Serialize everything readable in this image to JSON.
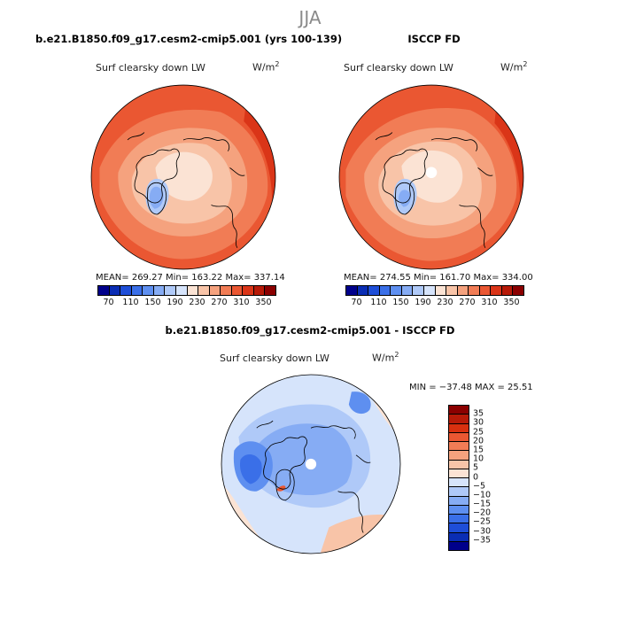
{
  "figure_title": "JJA",
  "panels": [
    {
      "title": "b.e21.B1850.f09_g17.cesm2-cmip5.001 (yrs 100-139)",
      "variable": "Surf clearsky down LW",
      "units": "W/m",
      "units_sup": "2",
      "stats": "MEAN= 269.27   Min= 163.22   Max= 337.14"
    },
    {
      "title": "ISCCP FD",
      "variable": "Surf clearsky down LW",
      "units": "W/m",
      "units_sup": "2",
      "stats": "MEAN= 274.55   Min= 161.70   Max= 334.00"
    },
    {
      "title": "b.e21.B1850.f09_g17.cesm2-cmip5.001 - ISCCP FD",
      "variable": "Surf clearsky down LW",
      "units": "W/m",
      "units_sup": "2",
      "stats": "MIN = −37.48 MAX =  25.51"
    }
  ],
  "chart_data": [
    {
      "type": "heatmap",
      "projection": "polar-stereographic (north)",
      "title": "b.e21.B1850.f09_g17.cesm2-cmip5.001 (yrs 100-139)",
      "variable": "Surf clearsky down LW",
      "units": "W/m2",
      "mean": 269.27,
      "min": 163.22,
      "max": 337.14,
      "colorbar": {
        "levels": [
          70,
          90,
          110,
          130,
          150,
          170,
          190,
          210,
          230,
          250,
          270,
          290,
          310,
          330,
          350
        ],
        "tick_labels": [
          "70",
          "110",
          "150",
          "190",
          "230",
          "270",
          "310",
          "350"
        ],
        "colors": [
          "#00008b",
          "#0a2db4",
          "#1e4ed8",
          "#3a6fe8",
          "#5e8ff0",
          "#86acf4",
          "#afc9f8",
          "#d6e4fb",
          "#fbe3d4",
          "#f8c4a8",
          "#f5a27e",
          "#f17c55",
          "#ea5732",
          "#da3518",
          "#b71a08",
          "#8b0000"
        ]
      }
    },
    {
      "type": "heatmap",
      "projection": "polar-stereographic (north)",
      "title": "ISCCP FD",
      "variable": "Surf clearsky down LW",
      "units": "W/m2",
      "mean": 274.55,
      "min": 161.7,
      "max": 334.0,
      "colorbar": {
        "levels": [
          70,
          90,
          110,
          130,
          150,
          170,
          190,
          210,
          230,
          250,
          270,
          290,
          310,
          330,
          350
        ],
        "tick_labels": [
          "70",
          "110",
          "150",
          "190",
          "230",
          "270",
          "310",
          "350"
        ],
        "colors": [
          "#00008b",
          "#0a2db4",
          "#1e4ed8",
          "#3a6fe8",
          "#5e8ff0",
          "#86acf4",
          "#afc9f8",
          "#d6e4fb",
          "#fbe3d4",
          "#f8c4a8",
          "#f5a27e",
          "#f17c55",
          "#ea5732",
          "#da3518",
          "#b71a08",
          "#8b0000"
        ]
      }
    },
    {
      "type": "heatmap",
      "projection": "polar-stereographic (north)",
      "title": "b.e21.B1850.f09_g17.cesm2-cmip5.001 - ISCCP FD",
      "variable": "Surf clearsky down LW",
      "units": "W/m2",
      "min": -37.48,
      "max": 25.51,
      "colorbar": {
        "orientation": "vertical",
        "tick_labels": [
          "35",
          "30",
          "25",
          "20",
          "15",
          "10",
          "5",
          "0",
          "−5",
          "−10",
          "−15",
          "−20",
          "−25",
          "−30",
          "−35"
        ],
        "colors": [
          "#8b0000",
          "#b71a08",
          "#d8300f",
          "#ea5732",
          "#f17c55",
          "#f5a27e",
          "#f8c4a8",
          "#fbe3d4",
          "#d6e4fb",
          "#afc9f8",
          "#86acf4",
          "#5e8ff0",
          "#3a6fe8",
          "#1e4ed8",
          "#0a2db4",
          "#00008b"
        ]
      }
    }
  ]
}
